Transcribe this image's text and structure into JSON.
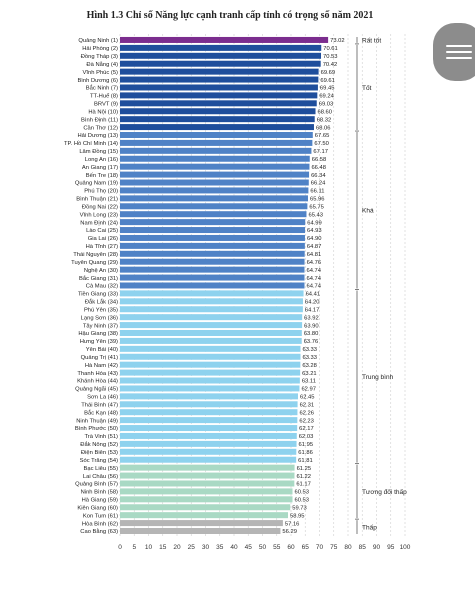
{
  "chart_data": {
    "type": "bar",
    "orientation": "horizontal",
    "title": "Hình 1.3 Chỉ số Năng lực cạnh tranh cấp tỉnh có trọng số năm 2021",
    "xlim": [
      0,
      100
    ],
    "xticks": [
      0,
      5,
      10,
      15,
      20,
      25,
      30,
      35,
      40,
      45,
      50,
      55,
      60,
      65,
      70,
      75,
      80,
      85,
      90,
      95,
      100
    ],
    "grid": "vertical dashed",
    "categories": [
      "Quảng Ninh (1)",
      "Hải Phòng (2)",
      "Đồng Tháp (3)",
      "Đà Nẵng (4)",
      "Vĩnh Phúc (5)",
      "Bình Dương (6)",
      "Bắc Ninh (7)",
      "TT-Huế (8)",
      "BRVT (9)",
      "Hà Nội (10)",
      "Bình Định (11)",
      "Cần Thơ (12)",
      "Hải Dương (13)",
      "TP. Hồ Chí Minh (14)",
      "Lâm Đồng (15)",
      "Long An (16)",
      "An Giang (17)",
      "Bến Tre (18)",
      "Quảng Nam (19)",
      "Phú Thọ (20)",
      "Bình Thuận (21)",
      "Đồng Nai (22)",
      "Vĩnh Long (23)",
      "Nam Định (24)",
      "Lào Cai (25)",
      "Gia Lai (26)",
      "Hà Tĩnh (27)",
      "Thái Nguyên (28)",
      "Tuyên Quang (29)",
      "Nghệ An (30)",
      "Bắc Giang (31)",
      "Cà Mau (32)",
      "Tiền Giang (33)",
      "Đắk Lắk (34)",
      "Phú Yên (35)",
      "Lạng Sơn (36)",
      "Tây Ninh (37)",
      "Hậu Giang (38)",
      "Hưng Yên (39)",
      "Yên Bái (40)",
      "Quảng Trị (41)",
      "Hà Nam (42)",
      "Thanh Hóa (43)",
      "Khánh Hòa (44)",
      "Quảng Ngãi (45)",
      "Sơn La (46)",
      "Thái Bình (47)",
      "Bắc Kạn (48)",
      "Ninh Thuận (49)",
      "Bình Phước (50)",
      "Trà Vinh (51)",
      "Đắk Nông (52)",
      "Điện Biên (53)",
      "Sóc Trăng (54)",
      "Bạc Liêu (55)",
      "Lai Châu (56)",
      "Quảng Bình (57)",
      "Ninh Bình (58)",
      "Hà Giang (59)",
      "Kiên Giang (60)",
      "Kon Tum (61)",
      "Hòa Bình (62)",
      "Cao Bằng (63)"
    ],
    "values": [
      73.02,
      70.61,
      70.53,
      70.42,
      69.69,
      69.61,
      69.45,
      69.24,
      69.03,
      68.6,
      68.32,
      68.06,
      67.65,
      67.5,
      67.17,
      66.58,
      66.48,
      66.34,
      66.24,
      66.11,
      65.96,
      65.75,
      65.43,
      64.99,
      64.93,
      64.9,
      64.87,
      64.81,
      64.76,
      64.74,
      64.74,
      64.74,
      64.41,
      64.2,
      64.17,
      63.92,
      63.9,
      63.8,
      63.76,
      63.33,
      63.33,
      63.28,
      63.21,
      63.11,
      62.97,
      62.45,
      62.31,
      62.26,
      62.23,
      62.17,
      62.03,
      61.95,
      61.86,
      61.81,
      61.25,
      61.22,
      61.17,
      60.53,
      60.53,
      59.73,
      58.95,
      57.16,
      56.29
    ],
    "value_labels": [
      "73.02",
      "70.61",
      "70.53",
      "70.42",
      "69.69",
      "69.61",
      "69.45",
      "69.24",
      "69.03",
      "68.60",
      "68.32",
      "68.06",
      "67.65",
      "67.50",
      "67.17",
      "66.58",
      "66.48",
      "66.34",
      "66.24",
      "66.11",
      "65.96",
      "65.75",
      "65.43",
      "64.99",
      "64.93",
      "64.90",
      "64.87",
      "64.81",
      "64.76",
      "64.74",
      "64.74",
      "64.74",
      "64.41",
      "64.20",
      "64.17",
      "63.92",
      "63.90",
      "63.80",
      "63.76",
      "63.33",
      "63.33",
      "63.28",
      "63.21",
      "63.11",
      "62.97",
      "62.45",
      "62.31",
      "62.26",
      "62.23",
      "62.17",
      "62.03",
      "61.95",
      "61.86",
      "61.81",
      "61.25",
      "61.22",
      "61.17",
      "60.53",
      "60.53",
      "59.73",
      "58.95",
      "57.16",
      "56.29"
    ],
    "groups": [
      {
        "name": "Rất tốt",
        "start": 0,
        "end": 0,
        "color": "#7b2d8e"
      },
      {
        "name": "Tốt",
        "start": 1,
        "end": 11,
        "color": "#1f4e9c"
      },
      {
        "name": "Khá",
        "start": 12,
        "end": 31,
        "color": "#4f82c6"
      },
      {
        "name": "Trung bình",
        "start": 32,
        "end": 53,
        "color": "#8ed2ee"
      },
      {
        "name": "Tương đối thấp",
        "start": 54,
        "end": 60,
        "color": "#a9d9c4"
      },
      {
        "name": "Thấp",
        "start": 61,
        "end": 62,
        "color": "#b5b5b5"
      }
    ]
  },
  "ui": {
    "menu_icon": "hamburger-icon"
  }
}
